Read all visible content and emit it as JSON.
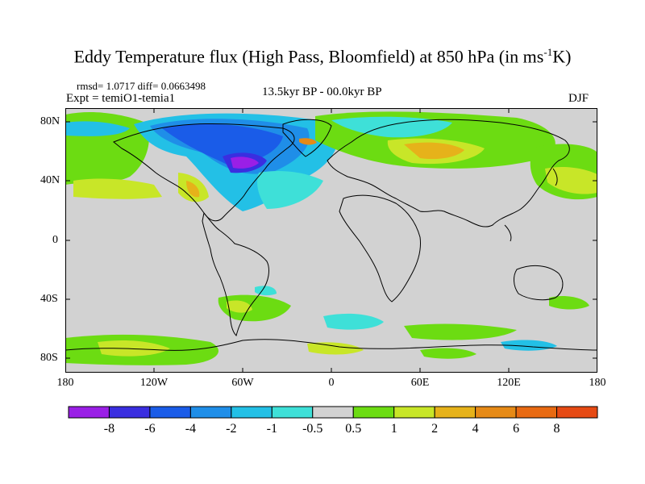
{
  "title_main": "Eddy Temperature flux (High Pass, Bloomfield) at 850 hPa (in ms",
  "title_sup": "-1",
  "title_end": "K)",
  "stats": "rmsd= 1.0717 diff= 0.0663498",
  "experiment": "Expt = temiO1-temia1",
  "period": "13.5kyr BP - 00.0kyr BP",
  "season": "DJF",
  "lat_labels": [
    "80N",
    "40N",
    "0",
    "40S",
    "80S"
  ],
  "lon_labels": [
    "180",
    "120W",
    "60W",
    "0",
    "60E",
    "120E",
    "180"
  ],
  "colorbar": {
    "labels": [
      "-8",
      "-6",
      "-4",
      "-2",
      "-1",
      "-0.5",
      "0.5",
      "1",
      "2",
      "4",
      "6",
      "8"
    ],
    "colors": [
      "#9a1fe6",
      "#3a2ee0",
      "#1a5ce8",
      "#1f8ee8",
      "#23c0e6",
      "#3ee0d8",
      "#d2d2d2",
      "#6cdc12",
      "#c8e628",
      "#e6b21a",
      "#e68a16",
      "#e86a12",
      "#e64a14"
    ]
  },
  "map": {
    "ocean_color": "#d2d2d2",
    "coast_color": "#000000"
  }
}
